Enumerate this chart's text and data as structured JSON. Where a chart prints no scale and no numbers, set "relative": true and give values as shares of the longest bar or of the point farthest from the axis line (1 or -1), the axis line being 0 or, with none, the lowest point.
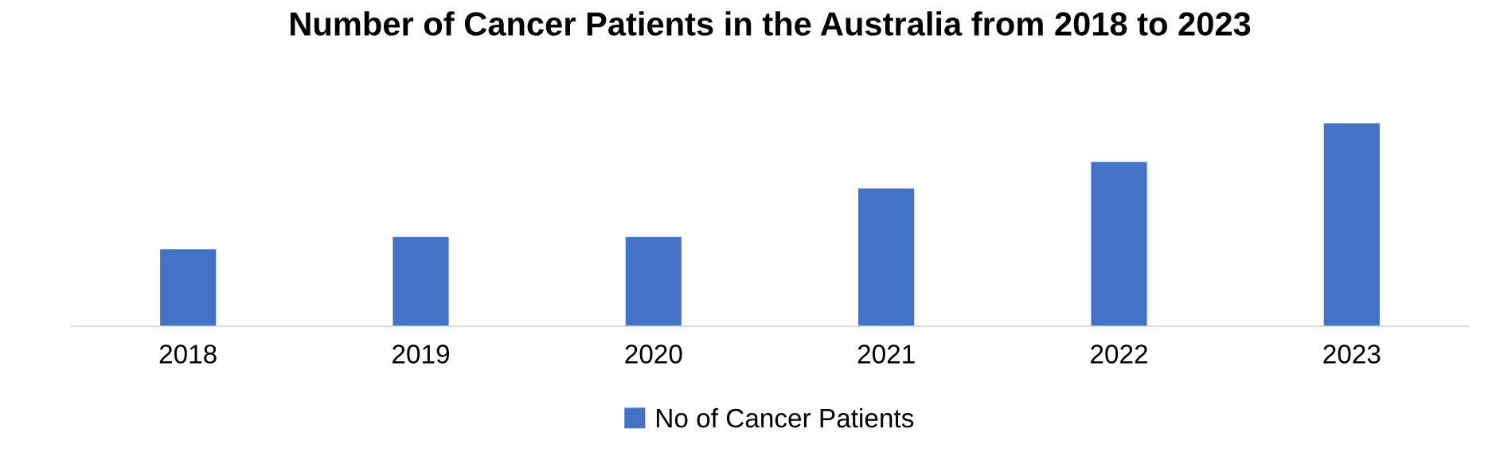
{
  "chart_data": {
    "type": "bar",
    "title": "Number of Cancer Patients in the Australia from 2018 to 2023",
    "categories": [
      "2018",
      "2019",
      "2020",
      "2021",
      "2022",
      "2023"
    ],
    "series": [
      {
        "name": "No of Cancer Patients",
        "color": "#4472c4",
        "values": [
          0.38,
          0.44,
          0.44,
          0.68,
          0.81,
          1
        ]
      }
    ],
    "relative": true,
    "legend": "bottom",
    "grid": false
  }
}
